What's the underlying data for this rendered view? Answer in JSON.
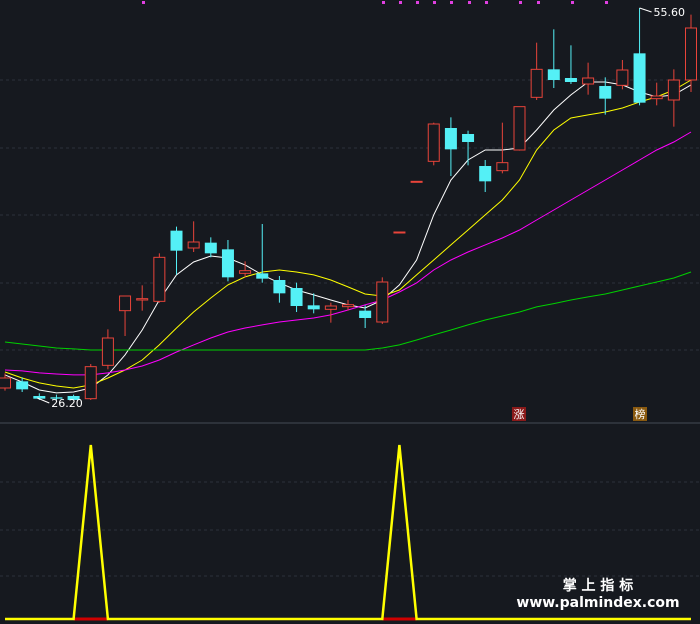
{
  "chart_data": [
    {
      "type": "candlestick",
      "open": [
        27.1,
        27.6,
        26.5,
        26.4,
        26.5,
        26.3,
        28.8,
        32.9,
        33.7,
        33.6,
        38.9,
        37.6,
        38.0,
        37.5,
        35.7,
        35.7,
        35.2,
        34.6,
        33.3,
        33.0,
        33.2,
        32.9,
        32.05,
        38.8,
        42.6,
        44.1,
        46.6,
        46.15,
        43.75,
        43.4,
        44.95,
        48.9,
        51.0,
        50.35,
        49.9,
        49.75,
        49.8,
        52.2,
        48.8,
        48.7,
        50.2
      ],
      "high": [
        28.2,
        27.9,
        26.7,
        26.6,
        26.6,
        28.9,
        31.5,
        34.0,
        34.8,
        37.2,
        39.2,
        39.6,
        38.4,
        38.2,
        36.6,
        39.4,
        35.5,
        35.0,
        34.2,
        33.5,
        33.7,
        33.3,
        35.4,
        38.8,
        42.6,
        47.0,
        47.4,
        46.4,
        44.2,
        47.0,
        48.2,
        53.0,
        54.0,
        52.8,
        51.5,
        50.4,
        51.7,
        55.6,
        50.0,
        51.0,
        55.1
      ],
      "low": [
        26.9,
        26.8,
        26.2,
        26.2,
        26.2,
        26.2,
        28.5,
        31.0,
        32.9,
        33.5,
        35.6,
        37.3,
        36.9,
        35.1,
        35.4,
        35.0,
        33.5,
        32.8,
        32.7,
        32.0,
        32.9,
        31.6,
        31.9,
        38.8,
        42.6,
        43.8,
        43.0,
        43.8,
        41.8,
        43.2,
        44.9,
        48.7,
        49.6,
        49.9,
        49.1,
        47.6,
        49.5,
        48.3,
        48.3,
        46.7,
        49.3
      ],
      "close": [
        27.85,
        27.0,
        26.3,
        26.3,
        26.2,
        28.7,
        30.85,
        34.0,
        33.8,
        36.9,
        37.4,
        38.05,
        37.2,
        35.4,
        35.9,
        35.3,
        34.2,
        33.25,
        33.0,
        33.25,
        33.35,
        32.35,
        35.05,
        38.8,
        42.6,
        46.9,
        45.0,
        45.55,
        42.6,
        44.0,
        48.2,
        51.0,
        50.2,
        50.05,
        50.35,
        48.8,
        50.95,
        48.5,
        49.0,
        50.2,
        54.1
      ],
      "up_color": "#e8443a",
      "down_color": "#54f0f6",
      "lines": [
        {
          "color": "#ffffff",
          "values": [
            28.08,
            27.55,
            26.95,
            26.73,
            26.8,
            27.1,
            28.08,
            29.58,
            31.45,
            33.7,
            35.58,
            36.55,
            37.0,
            36.85,
            36.33,
            35.58,
            34.98,
            34.45,
            34.08,
            33.7,
            33.33,
            33.1,
            33.7,
            34.83,
            36.7,
            40.08,
            42.7,
            44.2,
            44.95,
            44.95,
            45.1,
            46.45,
            47.95,
            49.08,
            50.05,
            50.05,
            49.83,
            49.3,
            48.93,
            49.08,
            49.83
          ]
        },
        {
          "color": "#ffff00",
          "values": [
            28.3,
            27.85,
            27.48,
            27.25,
            27.1,
            27.33,
            27.85,
            28.45,
            29.2,
            30.33,
            31.6,
            32.8,
            33.85,
            34.83,
            35.43,
            35.8,
            35.95,
            35.8,
            35.58,
            35.2,
            34.68,
            34.15,
            34.0,
            34.45,
            35.58,
            36.7,
            37.83,
            38.95,
            40.08,
            41.2,
            42.7,
            44.95,
            46.45,
            47.35,
            47.58,
            47.8,
            48.1,
            48.55,
            48.93,
            49.45,
            50.2
          ]
        },
        {
          "color": "#ff00ff",
          "values": [
            28.45,
            28.38,
            28.23,
            28.15,
            28.08,
            28.08,
            28.23,
            28.45,
            28.75,
            29.2,
            29.8,
            30.33,
            30.85,
            31.3,
            31.6,
            31.83,
            32.05,
            32.2,
            32.35,
            32.58,
            32.95,
            33.33,
            33.7,
            34.3,
            34.98,
            35.95,
            36.7,
            37.3,
            37.83,
            38.35,
            38.95,
            39.7,
            40.45,
            41.2,
            41.95,
            42.7,
            43.45,
            44.2,
            44.95,
            45.55,
            46.3
          ]
        },
        {
          "color": "#00d000",
          "values": [
            30.55,
            30.4,
            30.25,
            30.1,
            30.03,
            29.95,
            29.95,
            29.95,
            29.95,
            29.95,
            29.95,
            29.95,
            29.95,
            29.95,
            29.95,
            29.95,
            29.95,
            29.95,
            29.95,
            29.95,
            29.95,
            29.95,
            30.1,
            30.33,
            30.7,
            31.08,
            31.45,
            31.83,
            32.2,
            32.5,
            32.8,
            33.18,
            33.43,
            33.7,
            33.93,
            34.15,
            34.45,
            34.75,
            35.05,
            35.35,
            35.8
          ]
        }
      ],
      "annotations": [
        {
          "value": 55.6,
          "label": "55.60",
          "kind": "high"
        },
        {
          "value": 26.2,
          "label": "26.20",
          "kind": "low"
        }
      ],
      "markers": [
        "涨",
        "榜"
      ],
      "ylim": [
        24.55,
        56.2
      ]
    },
    {
      "type": "line",
      "color": "#ffff00",
      "signal_color": "#d00000",
      "values": [
        0,
        0,
        0,
        0,
        0,
        1,
        0,
        0,
        0,
        0,
        0,
        0,
        0,
        0,
        0,
        0,
        0,
        0,
        0,
        0,
        0,
        0,
        0,
        1,
        0,
        0,
        0,
        0,
        0,
        0,
        0,
        0,
        0,
        0,
        0,
        0,
        0,
        0,
        0,
        0,
        0
      ],
      "ylim": [
        0,
        1
      ]
    }
  ],
  "watermark": {
    "title": "掌 上 指 标",
    "url": "www.palmindex.com"
  }
}
